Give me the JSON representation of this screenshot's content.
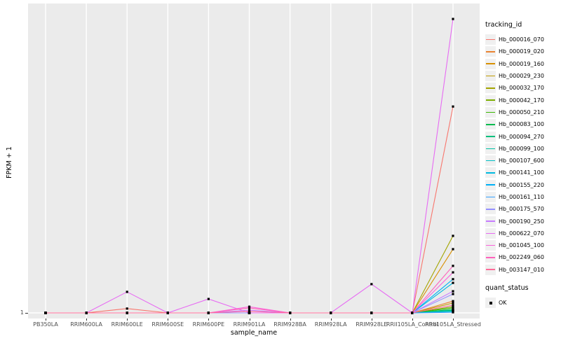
{
  "figure": {
    "y_axis_title": "FPKM + 1",
    "x_axis_title": "sample_name",
    "y_tick_labels": [
      "1"
    ],
    "colors": {
      "panel_bg": "#EBEBEB",
      "gridline": "#FFFFFF",
      "tick_text": "#4D4D4D",
      "axis_text": "#000000",
      "point": "#000000"
    }
  },
  "legend_tracking": {
    "title": "tracking_id"
  },
  "legend_quant": {
    "title": "quant_status",
    "items": [
      {
        "label": "OK",
        "key": "black-square-point"
      }
    ]
  },
  "chart_data": {
    "type": "line",
    "title": "",
    "xlabel": "sample_name",
    "ylabel": "FPKM + 1",
    "legend_position": "right",
    "grid": "ggplot-gray-panel-white-gridlines",
    "x_categories": [
      "PB350LA",
      "RRIM600LA",
      "RRIM600LE",
      "RRIM600SE",
      "RRIM600PE",
      "RRIM901LA",
      "RRIM928BA",
      "RRIM928LA",
      "RRIM928LE",
      "RRII105LA_Control",
      "RRII105LA_Stressed"
    ],
    "y_axis": {
      "tick_labels": [
        "1"
      ],
      "note": "Only the value FPKM+1 = 1 is labeled on the y axis; series values are expressed as fraction of panel height above the y=1 baseline (0 = FPKM+1 of 1, 1 = top of panel)."
    },
    "points_style": {
      "shape": "square",
      "color": "#000000",
      "meaning": "quant_status = OK at every sample"
    },
    "series": [
      {
        "name": "Hb_000016_070",
        "color": "#F8766D",
        "values": [
          0,
          0,
          0.014,
          0,
          0,
          0,
          0,
          0,
          0,
          0,
          0.667
        ]
      },
      {
        "name": "Hb_000019_020",
        "color": "#EA8331",
        "values": [
          0,
          0,
          0,
          0,
          0,
          0,
          0,
          0,
          0,
          0,
          0.038
        ]
      },
      {
        "name": "Hb_000019_160",
        "color": "#D89000",
        "values": [
          0,
          0,
          0,
          0,
          0,
          0,
          0,
          0,
          0,
          0,
          0.206
        ]
      },
      {
        "name": "Hb_000029_230",
        "color": "#C09B00",
        "values": [
          0,
          0,
          0,
          0,
          0,
          0,
          0,
          0,
          0,
          0,
          0.032
        ]
      },
      {
        "name": "Hb_000032_170",
        "color": "#A3A500",
        "values": [
          0,
          0,
          0,
          0,
          0,
          0,
          0,
          0,
          0,
          0,
          0.249
        ]
      },
      {
        "name": "Hb_000042_170",
        "color": "#7CAE00",
        "values": [
          0,
          0,
          0,
          0,
          0,
          0,
          0,
          0,
          0,
          0,
          0.02
        ]
      },
      {
        "name": "Hb_000050_210",
        "color": "#39B600",
        "values": [
          0,
          0,
          0,
          0,
          0,
          0,
          0,
          0,
          0,
          0,
          0.016
        ]
      },
      {
        "name": "Hb_000083_100",
        "color": "#00BB4E",
        "values": [
          0,
          0,
          0,
          0,
          0,
          0,
          0,
          0,
          0,
          0,
          0.011
        ]
      },
      {
        "name": "Hb_000094_270",
        "color": "#00BF7D",
        "values": [
          0,
          0,
          0,
          0,
          0,
          0,
          0,
          0,
          0,
          0,
          0.009
        ]
      },
      {
        "name": "Hb_000099_100",
        "color": "#00C1A3",
        "values": [
          0,
          0,
          0,
          0,
          0,
          0,
          0,
          0,
          0,
          0,
          0.007
        ]
      },
      {
        "name": "Hb_000107_600",
        "color": "#00BFC4",
        "values": [
          0,
          0,
          0,
          0,
          0,
          0,
          0,
          0,
          0,
          0,
          0.005
        ]
      },
      {
        "name": "Hb_000141_100",
        "color": "#00BAE0",
        "values": [
          0,
          0,
          0,
          0,
          0,
          0,
          0,
          0,
          0,
          0,
          0.097
        ]
      },
      {
        "name": "Hb_000155_220",
        "color": "#00B0F6",
        "values": [
          0,
          0,
          0,
          0,
          0,
          0,
          0,
          0,
          0,
          0,
          0.109
        ]
      },
      {
        "name": "Hb_000161_110",
        "color": "#35A2FF",
        "values": [
          0,
          0,
          0,
          0,
          0,
          0,
          0,
          0,
          0,
          0,
          0.002
        ]
      },
      {
        "name": "Hb_000175_570",
        "color": "#9590FF",
        "values": [
          0,
          0,
          0,
          0,
          0,
          0,
          0,
          0,
          0,
          0,
          0.061
        ]
      },
      {
        "name": "Hb_000190_250",
        "color": "#C77CFF",
        "values": [
          0,
          0,
          0,
          0,
          0,
          0.009,
          0,
          0,
          0,
          0,
          0.07
        ]
      },
      {
        "name": "Hb_000622_070",
        "color": "#E76BF3",
        "values": [
          0,
          0,
          0.068,
          0,
          0.045,
          0,
          0,
          0,
          0.093,
          0,
          0.95
        ]
      },
      {
        "name": "Hb_001045_100",
        "color": "#FA62DB",
        "values": [
          0,
          0,
          0,
          0,
          0,
          0.02,
          0,
          0,
          0,
          0,
          0.131
        ]
      },
      {
        "name": "Hb_002249_060",
        "color": "#FF62BC",
        "values": [
          0,
          0,
          0,
          0,
          0,
          0.016,
          0,
          0,
          0,
          0,
          0.152
        ]
      },
      {
        "name": "Hb_003147_010",
        "color": "#FF6A98",
        "values": [
          0,
          0,
          0,
          0,
          0,
          0.005,
          0,
          0,
          0,
          0,
          0.025
        ]
      }
    ]
  }
}
